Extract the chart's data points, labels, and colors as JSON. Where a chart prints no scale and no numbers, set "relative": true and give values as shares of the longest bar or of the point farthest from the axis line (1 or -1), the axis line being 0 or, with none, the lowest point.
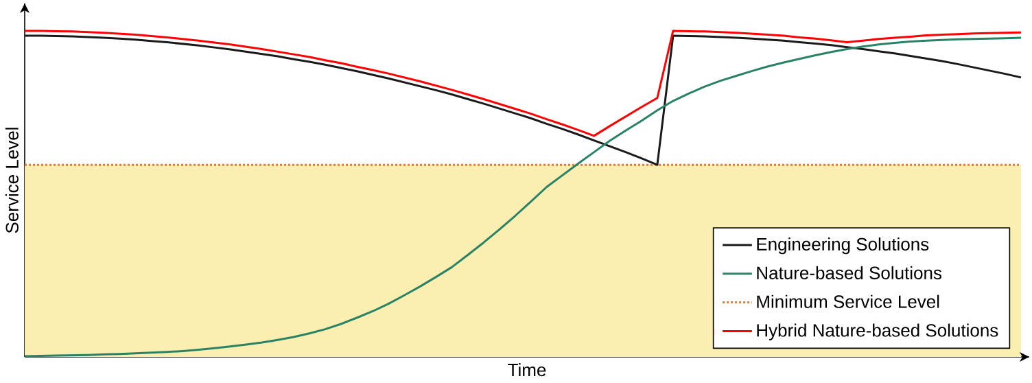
{
  "chart_data": {
    "type": "line",
    "relative": true,
    "xlabel": "Time",
    "ylabel": "Service Level",
    "legend": "bottom right",
    "categories": [
      null,
      null,
      null,
      null,
      null,
      null,
      null,
      null,
      null,
      null,
      null,
      null,
      null,
      null,
      null,
      null,
      null,
      null,
      null,
      null,
      null,
      null,
      null,
      null,
      null,
      null,
      null,
      null,
      null,
      null,
      null,
      null,
      null,
      null,
      null,
      null,
      null,
      null,
      null,
      null,
      null,
      null,
      null,
      null,
      null,
      null,
      null,
      null,
      null,
      null,
      null,
      null,
      null,
      null,
      null,
      null,
      null,
      null,
      null,
      null,
      null,
      null,
      null,
      null
    ],
    "series": [
      {
        "name": "Engineering Solutions",
        "color": "#1a1a1a",
        "values": [
          0.985,
          0.985,
          0.984,
          0.983,
          0.981,
          0.979,
          0.976,
          0.973,
          0.969,
          0.965,
          0.96,
          0.955,
          0.949,
          0.943,
          0.936,
          0.929,
          0.922,
          0.913,
          0.905,
          0.896,
          0.886,
          0.876,
          0.865,
          0.854,
          0.842,
          0.83,
          0.818,
          0.805,
          0.791,
          0.777,
          0.762,
          0.747,
          0.732,
          0.715,
          0.699,
          0.682,
          0.664,
          0.646,
          0.628,
          0.609,
          0.589,
          0.985,
          0.984,
          0.983,
          0.981,
          0.979,
          0.976,
          0.973,
          0.97,
          0.965,
          0.961,
          0.956,
          0.95,
          0.944,
          0.937,
          0.931,
          0.923,
          0.915,
          0.907,
          0.898,
          0.888,
          0.878,
          0.868,
          0.857
        ]
      },
      {
        "name": "Nature-based Solutions",
        "color": "#2a8266",
        "values": [
          0.002,
          0.003,
          0.004,
          0.005,
          0.006,
          0.008,
          0.009,
          0.011,
          0.013,
          0.015,
          0.018,
          0.022,
          0.027,
          0.032,
          0.038,
          0.044,
          0.052,
          0.061,
          0.072,
          0.085,
          0.101,
          0.12,
          0.14,
          0.163,
          0.189,
          0.216,
          0.245,
          0.275,
          0.312,
          0.35,
          0.39,
          0.432,
          0.476,
          0.521,
          0.557,
          0.593,
          0.628,
          0.663,
          0.694,
          0.724,
          0.756,
          0.785,
          0.808,
          0.829,
          0.847,
          0.862,
          0.877,
          0.891,
          0.903,
          0.914,
          0.925,
          0.935,
          0.944,
          0.952,
          0.958,
          0.963,
          0.967,
          0.97,
          0.972,
          0.974,
          0.975,
          0.976,
          0.977,
          0.979
        ]
      },
      {
        "name": "Hybrid Nature-based Solutions",
        "color": "#ff0000",
        "values": [
          1.0,
          1.0,
          0.999,
          0.998,
          0.996,
          0.994,
          0.991,
          0.988,
          0.984,
          0.98,
          0.975,
          0.97,
          0.964,
          0.958,
          0.951,
          0.944,
          0.936,
          0.928,
          0.92,
          0.91,
          0.901,
          0.89,
          0.88,
          0.869,
          0.857,
          0.845,
          0.832,
          0.819,
          0.805,
          0.791,
          0.776,
          0.761,
          0.746,
          0.729,
          0.713,
          0.696,
          0.678,
          0.708,
          0.737,
          0.766,
          0.794,
          1.0,
          0.999,
          0.998,
          0.996,
          0.994,
          0.991,
          0.988,
          0.985,
          0.98,
          0.976,
          0.971,
          0.965,
          0.97,
          0.975,
          0.979,
          0.982,
          0.986,
          0.988,
          0.99,
          0.992,
          0.993,
          0.994,
          0.995
        ]
      }
    ],
    "ref_lines": [
      {
        "axis": "y",
        "value": 0.589,
        "label": "Minimum Service Level",
        "color": "#e07b39",
        "line_style": "dotted"
      }
    ],
    "bands": [
      {
        "axis": "y",
        "from": 0,
        "to": 0.589,
        "color": "#faeeb0"
      }
    ]
  }
}
